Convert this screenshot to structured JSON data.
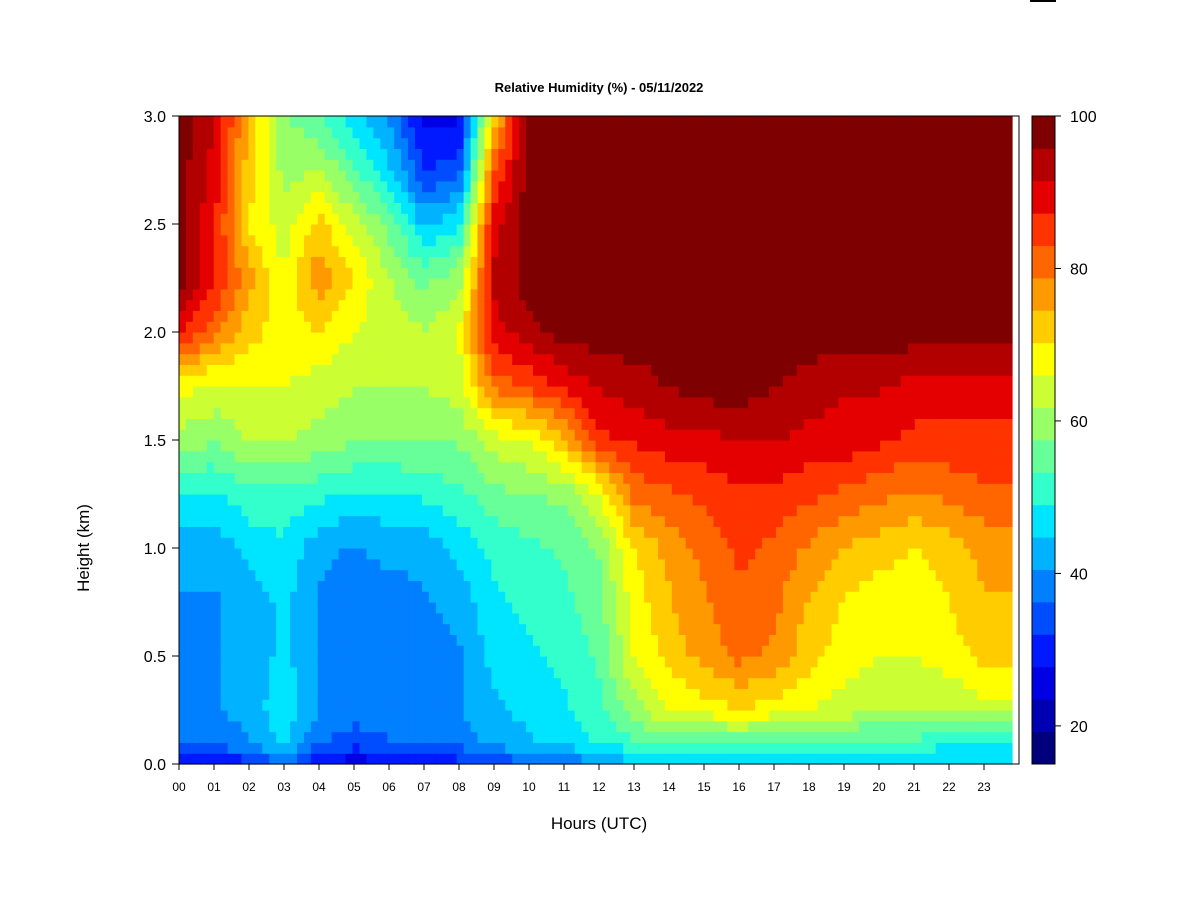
{
  "chart_data": {
    "type": "heatmap",
    "title": "Relative Humidity (%) - 05/11/2022",
    "xlabel": "Hours (UTC)",
    "ylabel": "Height (km)",
    "xlim": [
      0,
      24
    ],
    "ylim": [
      0.0,
      3.0
    ],
    "x_ticks": [
      "00",
      "01",
      "02",
      "03",
      "04",
      "05",
      "06",
      "07",
      "08",
      "09",
      "10",
      "11",
      "12",
      "13",
      "14",
      "15",
      "16",
      "17",
      "18",
      "19",
      "20",
      "21",
      "22",
      "23"
    ],
    "y_ticks": [
      "0.0",
      "0.5",
      "1.0",
      "1.5",
      "2.0",
      "2.5",
      "3.0"
    ],
    "colorbar": {
      "min": 15,
      "max": 100,
      "ticks": [
        "20",
        "40",
        "60",
        "80",
        "100"
      ],
      "colors": [
        "#00007F",
        "#0000B2",
        "#0000E5",
        "#0019FF",
        "#004CFF",
        "#007FFF",
        "#00B2FF",
        "#00E5FF",
        "#33FFCC",
        "#66FF99",
        "#99FF66",
        "#CCFF33",
        "#FFFF00",
        "#FFCC00",
        "#FF9900",
        "#FF6600",
        "#FF3300",
        "#E50000",
        "#B20000",
        "#7F0000"
      ]
    },
    "heights_km": [
      0.0,
      0.1,
      0.25,
      0.5,
      0.75,
      1.0,
      1.25,
      1.5,
      1.75,
      2.0,
      2.25,
      2.5,
      2.75,
      3.0
    ],
    "profiles": [
      {
        "hour": 0,
        "rh": [
          25,
          36,
          38,
          40,
          40,
          42,
          48,
          60,
          68,
          88,
          98,
          98,
          98,
          98
        ]
      },
      {
        "hour": 1,
        "rh": [
          28,
          38,
          40,
          40,
          40,
          42,
          48,
          58,
          65,
          80,
          88,
          88,
          90,
          92
        ]
      },
      {
        "hour": 2,
        "rh": [
          30,
          40,
          42,
          42,
          42,
          46,
          52,
          62,
          66,
          72,
          76,
          70,
          72,
          74
        ]
      },
      {
        "hour": 3,
        "rh": [
          38,
          46,
          48,
          46,
          46,
          48,
          52,
          62,
          66,
          68,
          66,
          64,
          60,
          58
        ]
      },
      {
        "hour": 4,
        "rh": [
          27,
          37,
          40,
          40,
          40,
          42,
          50,
          60,
          64,
          70,
          78,
          72,
          62,
          54
        ]
      },
      {
        "hour": 5,
        "rh": [
          25,
          34,
          38,
          38,
          38,
          40,
          48,
          58,
          62,
          66,
          70,
          64,
          54,
          46
        ]
      },
      {
        "hour": 6,
        "rh": [
          26,
          36,
          38,
          38,
          38,
          42,
          48,
          58,
          62,
          64,
          62,
          56,
          46,
          40
        ]
      },
      {
        "hour": 7,
        "rh": [
          28,
          36,
          38,
          38,
          40,
          42,
          50,
          58,
          62,
          62,
          56,
          44,
          32,
          26
        ]
      },
      {
        "hour": 8,
        "rh": [
          30,
          38,
          40,
          40,
          42,
          46,
          52,
          58,
          64,
          66,
          60,
          48,
          34,
          26
        ]
      },
      {
        "hour": 9,
        "rh": [
          34,
          42,
          44,
          46,
          48,
          50,
          56,
          64,
          80,
          90,
          92,
          90,
          82,
          72
        ]
      },
      {
        "hour": 10,
        "rh": [
          34,
          44,
          46,
          48,
          50,
          52,
          58,
          66,
          84,
          94,
          98,
          98,
          98,
          98
        ]
      },
      {
        "hour": 11,
        "rh": [
          36,
          46,
          48,
          50,
          52,
          54,
          58,
          74,
          88,
          98,
          98,
          98,
          98,
          98
        ]
      },
      {
        "hour": 12,
        "rh": [
          40,
          50,
          52,
          54,
          56,
          58,
          66,
          86,
          92,
          98,
          98,
          98,
          98,
          98
        ]
      },
      {
        "hour": 13,
        "rh": [
          44,
          52,
          60,
          66,
          68,
          70,
          80,
          88,
          94,
          98,
          98,
          98,
          98,
          98
        ]
      },
      {
        "hour": 14,
        "rh": [
          45,
          54,
          66,
          72,
          74,
          76,
          82,
          90,
          96,
          98,
          98,
          98,
          98,
          98
        ]
      },
      {
        "hour": 15,
        "rh": [
          45,
          54,
          68,
          76,
          78,
          80,
          84,
          90,
          98,
          98,
          98,
          98,
          98,
          98
        ]
      },
      {
        "hour": 16,
        "rh": [
          44,
          54,
          70,
          80,
          82,
          84,
          86,
          92,
          98,
          98,
          98,
          98,
          98,
          98
        ]
      },
      {
        "hour": 17,
        "rh": [
          44,
          54,
          68,
          78,
          80,
          82,
          86,
          92,
          96,
          98,
          98,
          98,
          98,
          98
        ]
      },
      {
        "hour": 18,
        "rh": [
          45,
          52,
          66,
          72,
          74,
          78,
          84,
          90,
          94,
          98,
          98,
          98,
          98,
          98
        ]
      },
      {
        "hour": 19,
        "rh": [
          45,
          52,
          64,
          68,
          70,
          74,
          82,
          90,
          92,
          98,
          98,
          98,
          98,
          98
        ]
      },
      {
        "hour": 20,
        "rh": [
          45,
          52,
          62,
          66,
          68,
          72,
          80,
          88,
          92,
          98,
          98,
          98,
          98,
          98
        ]
      },
      {
        "hour": 21,
        "rh": [
          45,
          52,
          62,
          66,
          68,
          70,
          78,
          86,
          90,
          98,
          98,
          98,
          98,
          98
        ]
      },
      {
        "hour": 22,
        "rh": [
          44,
          50,
          62,
          68,
          70,
          72,
          80,
          86,
          90,
          98,
          98,
          98,
          98,
          98
        ]
      },
      {
        "hour": 23,
        "rh": [
          44,
          50,
          64,
          72,
          74,
          76,
          82,
          86,
          90,
          98,
          98,
          98,
          98,
          98
        ]
      },
      {
        "hour": 24,
        "rh": [
          44,
          50,
          64,
          72,
          74,
          76,
          82,
          86,
          90,
          98,
          98,
          98,
          98,
          98
        ]
      }
    ]
  }
}
